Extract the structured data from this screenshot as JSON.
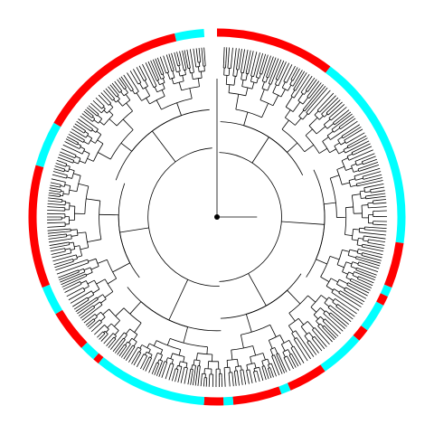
{
  "figure": {
    "type": "circular-phylogenetic-tree",
    "background": "#ffffff",
    "branch_color": "#000000",
    "root_marker_color": "#000000",
    "group_colors": {
      "A": "#ff0000",
      "B": "#00ffff"
    },
    "tip_count": 240,
    "ring_segments": [
      {
        "group": "A",
        "start_deg": 0,
        "end_deg": 37
      },
      {
        "group": "B",
        "start_deg": 37,
        "end_deg": 98
      },
      {
        "group": "A",
        "start_deg": 98,
        "end_deg": 112
      },
      {
        "group": "B",
        "start_deg": 112,
        "end_deg": 115
      },
      {
        "group": "A",
        "start_deg": 115,
        "end_deg": 118
      },
      {
        "group": "B",
        "start_deg": 118,
        "end_deg": 127
      },
      {
        "group": "A",
        "start_deg": 127,
        "end_deg": 131
      },
      {
        "group": "B",
        "start_deg": 131,
        "end_deg": 145
      },
      {
        "group": "A",
        "start_deg": 145,
        "end_deg": 157
      },
      {
        "group": "B",
        "start_deg": 157,
        "end_deg": 160
      },
      {
        "group": "A",
        "start_deg": 160,
        "end_deg": 175
      },
      {
        "group": "B",
        "start_deg": 175,
        "end_deg": 178
      },
      {
        "group": "A",
        "start_deg": 178,
        "end_deg": 184
      },
      {
        "group": "B",
        "start_deg": 184,
        "end_deg": 219
      },
      {
        "group": "A",
        "start_deg": 219,
        "end_deg": 221
      },
      {
        "group": "B",
        "start_deg": 221,
        "end_deg": 226
      },
      {
        "group": "A",
        "start_deg": 226,
        "end_deg": 239
      },
      {
        "group": "B",
        "start_deg": 239,
        "end_deg": 248
      },
      {
        "group": "A",
        "start_deg": 248,
        "end_deg": 286
      },
      {
        "group": "B",
        "start_deg": 286,
        "end_deg": 300
      },
      {
        "group": "A",
        "start_deg": 300,
        "end_deg": 347
      },
      {
        "group": "B",
        "start_deg": 347,
        "end_deg": 356
      }
    ],
    "clades": [
      {
        "start_deg": 2,
        "end_deg": 64,
        "depth": 0.62
      },
      {
        "start_deg": 64,
        "end_deg": 124,
        "depth": 0.7
      },
      {
        "start_deg": 124,
        "end_deg": 178,
        "depth": 0.66
      },
      {
        "start_deg": 178,
        "end_deg": 232,
        "depth": 0.74
      },
      {
        "start_deg": 232,
        "end_deg": 290,
        "depth": 0.64
      },
      {
        "start_deg": 290,
        "end_deg": 356,
        "depth": 0.7
      }
    ],
    "backbone": [
      {
        "start_deg": 2,
        "end_deg": 178,
        "depth": 0.42
      },
      {
        "start_deg": 178,
        "end_deg": 356,
        "depth": 0.45
      }
    ]
  }
}
